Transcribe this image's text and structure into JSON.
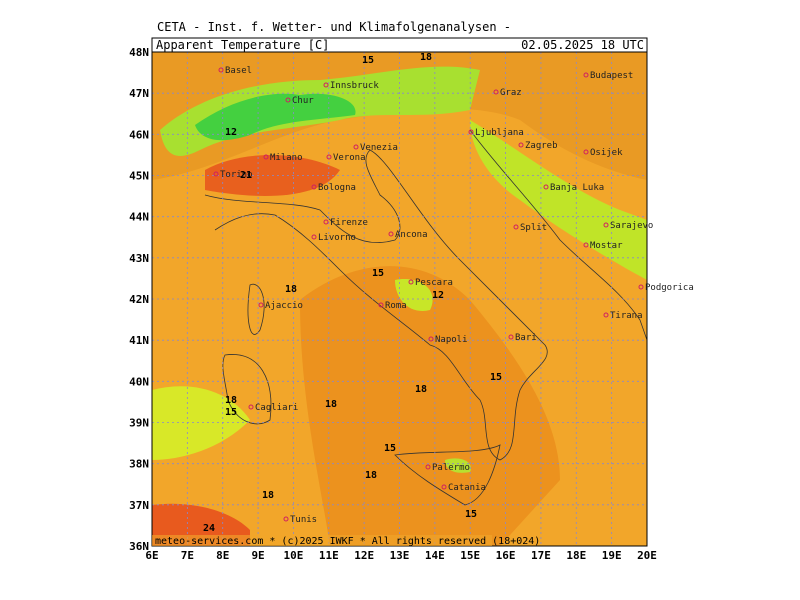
{
  "header": "CETA - Inst. f. Wetter- und Klimafolgenanalysen -",
  "title": "Apparent_Temperature [C]",
  "date": "02.05.2025 18 UTC",
  "footer": "meteo-services.com * (c)2025 IWKF * All rights reserved (18+024)",
  "lat_labels": [
    "48N",
    "47N",
    "46N",
    "45N",
    "44N",
    "43N",
    "42N",
    "41N",
    "40N",
    "39N",
    "38N",
    "37N",
    "36N"
  ],
  "lon_labels": [
    "6E",
    "7E",
    "8E",
    "9E",
    "10E",
    "11E",
    "12E",
    "13E",
    "14E",
    "15E",
    "16E",
    "17E",
    "18E",
    "19E",
    "20E"
  ],
  "cities": [
    "Basel",
    "Innsbruck",
    "Chur",
    "Milano",
    "Torino",
    "Verona",
    "Venezia",
    "Bologna",
    "Firenze",
    "Livorno",
    "Ancona",
    "Pescara",
    "Roma",
    "Napoli",
    "Bari",
    "Ajaccio",
    "Cagliari",
    "Palermo",
    "Catania",
    "Tunis",
    "Zagreb",
    "Ljubljana",
    "Split",
    "Sarajevo",
    "Mostar",
    "Podgorica",
    "Tirana",
    "Budapest",
    "Graz",
    "Banja Luka",
    "Osijek"
  ],
  "contour_labels": [
    "18",
    "21",
    "15",
    "12",
    "18",
    "15",
    "18",
    "18",
    "15",
    "18",
    "15",
    "12",
    "18",
    "15",
    "24",
    "18",
    "15"
  ]
}
